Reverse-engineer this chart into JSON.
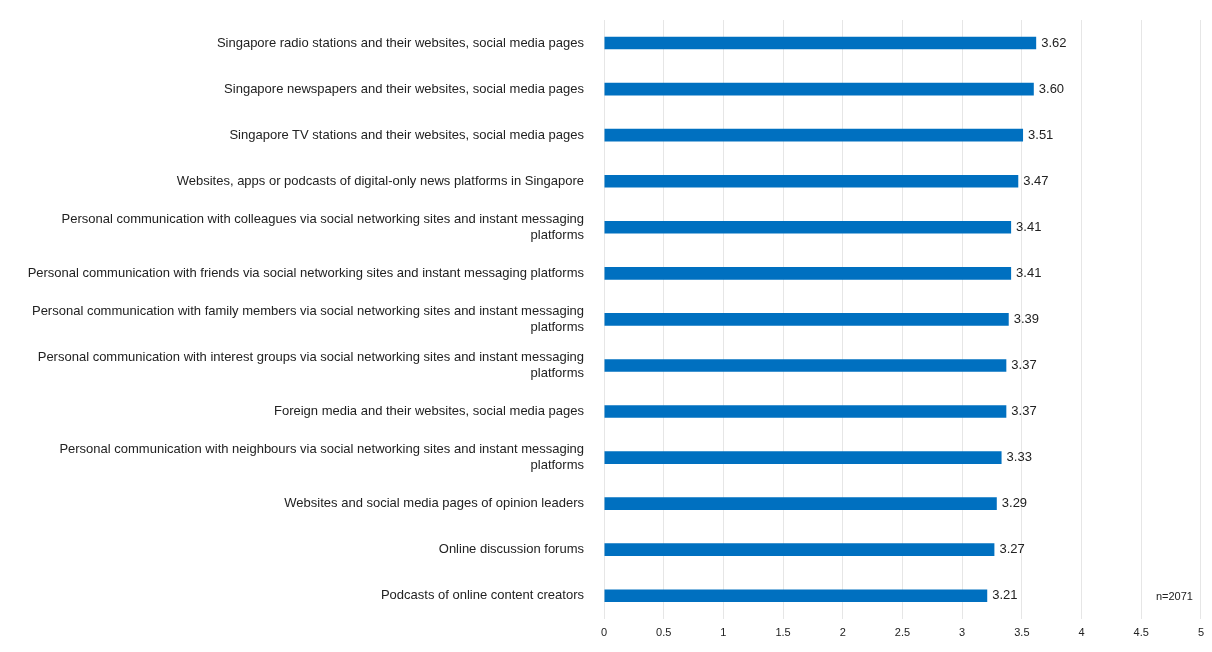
{
  "chart_data": {
    "type": "bar",
    "orientation": "horizontal",
    "categories": [
      "Singapore radio stations and their websites, social media pages",
      "Singapore newspapers and their websites, social media pages",
      "Singapore TV stations and their websites, social media pages",
      "Websites, apps or podcasts of digital-only news platforms in Singapore",
      "Personal communication with colleagues via social networking sites and instant messaging platforms",
      "Personal communication with friends via social networking sites and instant messaging platforms",
      "Personal communication with family members via social networking sites and instant messaging platforms",
      "Personal communication with interest groups via social networking sites and instant messaging platforms",
      "Foreign media and their websites, social media pages",
      "Personal communication with neighbours via social networking sites and instant messaging platforms",
      "Websites and social media pages of opinion leaders",
      "Online discussion forums",
      "Podcasts of online content creators"
    ],
    "values": [
      3.62,
      3.6,
      3.51,
      3.47,
      3.41,
      3.41,
      3.39,
      3.37,
      3.37,
      3.33,
      3.29,
      3.27,
      3.21
    ],
    "value_labels": [
      "3.62",
      "3.60",
      "3.51",
      "3.47",
      "3.41",
      "3.41",
      "3.39",
      "3.37",
      "3.37",
      "3.33",
      "3.29",
      "3.27",
      "3.21"
    ],
    "color": "#0070c0",
    "xlim": [
      0,
      5
    ],
    "xticks": [
      0,
      0.5,
      1,
      1.5,
      2,
      2.5,
      3,
      3.5,
      4,
      4.5,
      5
    ],
    "grid": "x",
    "legend": false,
    "annotations": [
      "n=2071"
    ]
  }
}
